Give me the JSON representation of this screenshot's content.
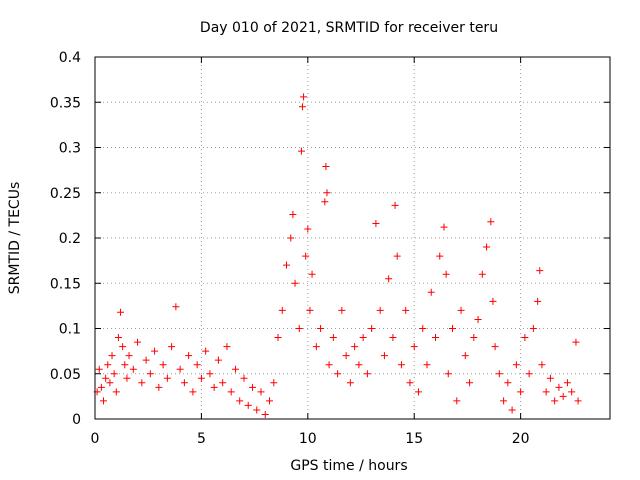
{
  "chart_data": {
    "type": "scatter",
    "title": "Day 010 of 2021, SRMTID for receiver teru",
    "xlabel": "GPS time / hours",
    "ylabel": "SRMTID / TECUs",
    "xlim": [
      0,
      24.2
    ],
    "ylim": [
      0,
      0.4
    ],
    "xticks": [
      0,
      5,
      10,
      15,
      20
    ],
    "yticks": [
      0,
      0.05,
      0.1,
      0.15,
      0.2,
      0.25,
      0.3,
      0.35,
      0.4
    ],
    "xtick_labels": [
      "0",
      "5",
      "10",
      "15",
      "20"
    ],
    "ytick_labels": [
      "0",
      "0.05",
      "0.1",
      "0.15",
      "0.2",
      "0.25",
      "0.3",
      "0.35",
      "0.4"
    ],
    "grid": true,
    "marker": "+",
    "color": "#ff0000",
    "series": [
      {
        "name": "SRMTID",
        "points": [
          [
            0.1,
            0.03
          ],
          [
            0.2,
            0.055
          ],
          [
            0.3,
            0.035
          ],
          [
            0.4,
            0.02
          ],
          [
            0.5,
            0.045
          ],
          [
            0.6,
            0.06
          ],
          [
            0.7,
            0.04
          ],
          [
            0.8,
            0.07
          ],
          [
            0.9,
            0.05
          ],
          [
            1.0,
            0.03
          ],
          [
            1.1,
            0.09
          ],
          [
            1.2,
            0.118
          ],
          [
            1.3,
            0.08
          ],
          [
            1.4,
            0.06
          ],
          [
            1.5,
            0.045
          ],
          [
            1.6,
            0.07
          ],
          [
            1.8,
            0.055
          ],
          [
            2.0,
            0.085
          ],
          [
            2.2,
            0.04
          ],
          [
            2.4,
            0.065
          ],
          [
            2.6,
            0.05
          ],
          [
            2.8,
            0.075
          ],
          [
            3.0,
            0.035
          ],
          [
            3.2,
            0.06
          ],
          [
            3.4,
            0.045
          ],
          [
            3.6,
            0.08
          ],
          [
            3.8,
            0.124
          ],
          [
            4.0,
            0.055
          ],
          [
            4.2,
            0.04
          ],
          [
            4.4,
            0.07
          ],
          [
            4.6,
            0.03
          ],
          [
            4.8,
            0.06
          ],
          [
            5.0,
            0.045
          ],
          [
            5.2,
            0.075
          ],
          [
            5.4,
            0.05
          ],
          [
            5.6,
            0.035
          ],
          [
            5.8,
            0.065
          ],
          [
            6.0,
            0.04
          ],
          [
            6.2,
            0.08
          ],
          [
            6.4,
            0.03
          ],
          [
            6.6,
            0.055
          ],
          [
            6.8,
            0.02
          ],
          [
            7.0,
            0.045
          ],
          [
            7.2,
            0.015
          ],
          [
            7.4,
            0.035
          ],
          [
            7.6,
            0.01
          ],
          [
            7.8,
            0.03
          ],
          [
            8.0,
            0.005
          ],
          [
            8.2,
            0.02
          ],
          [
            8.4,
            0.04
          ],
          [
            8.6,
            0.09
          ],
          [
            8.8,
            0.12
          ],
          [
            9.0,
            0.17
          ],
          [
            9.2,
            0.2
          ],
          [
            9.3,
            0.226
          ],
          [
            9.4,
            0.15
          ],
          [
            9.6,
            0.1
          ],
          [
            9.7,
            0.296
          ],
          [
            9.75,
            0.345
          ],
          [
            9.8,
            0.356
          ],
          [
            9.9,
            0.18
          ],
          [
            10.0,
            0.21
          ],
          [
            10.1,
            0.12
          ],
          [
            10.2,
            0.16
          ],
          [
            10.4,
            0.08
          ],
          [
            10.6,
            0.1
          ],
          [
            10.8,
            0.24
          ],
          [
            10.85,
            0.279
          ],
          [
            10.9,
            0.25
          ],
          [
            11.0,
            0.06
          ],
          [
            11.2,
            0.09
          ],
          [
            11.4,
            0.05
          ],
          [
            11.6,
            0.12
          ],
          [
            11.8,
            0.07
          ],
          [
            12.0,
            0.04
          ],
          [
            12.2,
            0.08
          ],
          [
            12.4,
            0.06
          ],
          [
            12.6,
            0.09
          ],
          [
            12.8,
            0.05
          ],
          [
            13.0,
            0.1
          ],
          [
            13.2,
            0.216
          ],
          [
            13.4,
            0.12
          ],
          [
            13.6,
            0.07
          ],
          [
            13.8,
            0.155
          ],
          [
            14.0,
            0.09
          ],
          [
            14.1,
            0.236
          ],
          [
            14.2,
            0.18
          ],
          [
            14.4,
            0.06
          ],
          [
            14.6,
            0.12
          ],
          [
            14.8,
            0.04
          ],
          [
            15.0,
            0.08
          ],
          [
            15.2,
            0.03
          ],
          [
            15.4,
            0.1
          ],
          [
            15.6,
            0.06
          ],
          [
            15.8,
            0.14
          ],
          [
            16.0,
            0.09
          ],
          [
            16.2,
            0.18
          ],
          [
            16.4,
            0.212
          ],
          [
            16.5,
            0.16
          ],
          [
            16.6,
            0.05
          ],
          [
            16.8,
            0.1
          ],
          [
            17.0,
            0.02
          ],
          [
            17.2,
            0.12
          ],
          [
            17.4,
            0.07
          ],
          [
            17.6,
            0.04
          ],
          [
            17.8,
            0.09
          ],
          [
            18.0,
            0.11
          ],
          [
            18.2,
            0.16
          ],
          [
            18.4,
            0.19
          ],
          [
            18.6,
            0.218
          ],
          [
            18.7,
            0.13
          ],
          [
            18.8,
            0.08
          ],
          [
            19.0,
            0.05
          ],
          [
            19.2,
            0.02
          ],
          [
            19.4,
            0.04
          ],
          [
            19.6,
            0.01
          ],
          [
            19.8,
            0.06
          ],
          [
            20.0,
            0.03
          ],
          [
            20.2,
            0.09
          ],
          [
            20.4,
            0.05
          ],
          [
            20.6,
            0.1
          ],
          [
            20.8,
            0.13
          ],
          [
            20.9,
            0.164
          ],
          [
            21.0,
            0.06
          ],
          [
            21.2,
            0.03
          ],
          [
            21.4,
            0.045
          ],
          [
            21.6,
            0.02
          ],
          [
            21.8,
            0.035
          ],
          [
            22.0,
            0.025
          ],
          [
            22.2,
            0.04
          ],
          [
            22.4,
            0.03
          ],
          [
            22.6,
            0.085
          ],
          [
            22.7,
            0.02
          ]
        ]
      }
    ]
  }
}
